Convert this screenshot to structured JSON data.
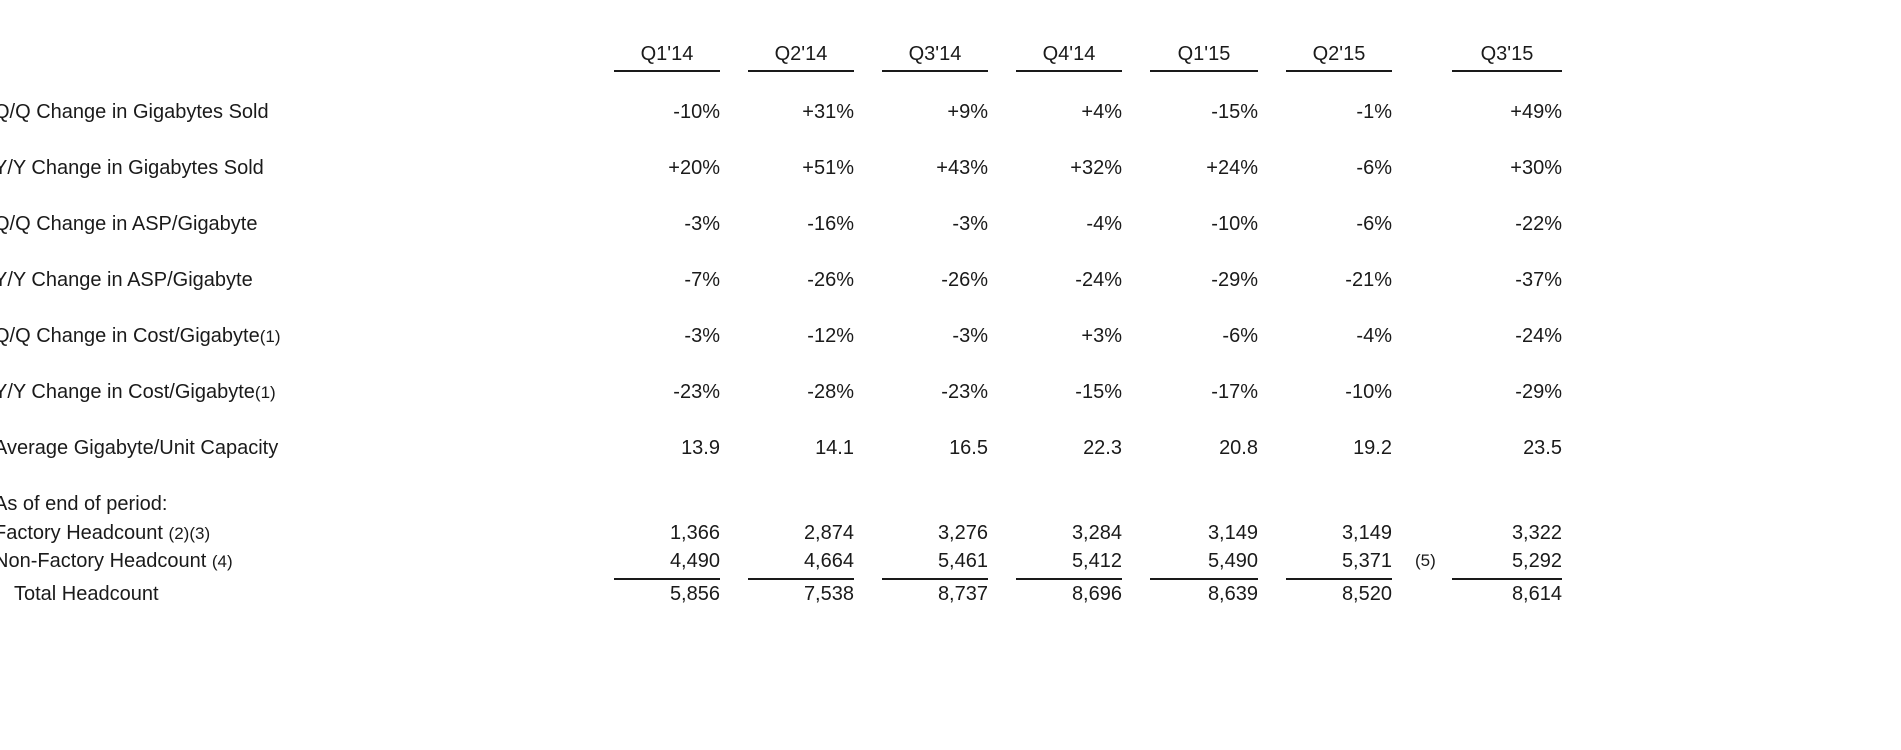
{
  "columns": [
    "Q1'14",
    "Q2'14",
    "Q3'14",
    "Q4'14",
    "Q1'15",
    "Q2'15",
    "Q3'15"
  ],
  "rows": [
    {
      "label": "Q/Q Change in Gigabytes Sold",
      "note": "",
      "values": [
        "-10%",
        "+31%",
        "+9%",
        "+4%",
        "-15%",
        "-1%",
        "+49%"
      ]
    },
    {
      "label": "Y/Y Change in Gigabytes Sold",
      "note": "",
      "values": [
        "+20%",
        "+51%",
        "+43%",
        "+32%",
        "+24%",
        "-6%",
        "+30%"
      ]
    },
    {
      "label": "Q/Q Change in ASP/Gigabyte",
      "note": "",
      "values": [
        "-3%",
        "-16%",
        "-3%",
        "-4%",
        "-10%",
        "-6%",
        "-22%"
      ]
    },
    {
      "label": "Y/Y Change in ASP/Gigabyte",
      "note": "",
      "values": [
        "-7%",
        "-26%",
        "-26%",
        "-24%",
        "-29%",
        "-21%",
        "-37%"
      ]
    },
    {
      "label": "Q/Q Change in Cost/Gigabyte",
      "note": "(1)",
      "values": [
        "-3%",
        "-12%",
        "-3%",
        "+3%",
        "-6%",
        "-4%",
        "-24%"
      ]
    },
    {
      "label": "Y/Y Change in Cost/Gigabyte",
      "note": "(1)",
      "values": [
        "-23%",
        "-28%",
        "-23%",
        "-15%",
        "-17%",
        "-10%",
        "-29%"
      ]
    },
    {
      "label": "Average Gigabyte/Unit Capacity",
      "note": "",
      "values": [
        "13.9",
        "14.1",
        "16.5",
        "22.3",
        "20.8",
        "19.2",
        "23.5"
      ]
    }
  ],
  "period_section": {
    "heading": "As of end of period:",
    "rows": [
      {
        "label": "Factory Headcount",
        "note": "(2)(3)",
        "values": [
          "1,366",
          "2,874",
          "3,276",
          "3,284",
          "3,149",
          "3,149",
          "3,322"
        ]
      },
      {
        "label": "Non-Factory Headcount",
        "note": "(4)",
        "values": [
          "4,490",
          "4,664",
          "5,461",
          "5,412",
          "5,490",
          "5,371",
          "5,292"
        ]
      }
    ],
    "between_note": "(5)",
    "total": {
      "label": "Total Headcount",
      "values": [
        "5,856",
        "7,538",
        "8,737",
        "8,696",
        "8,639",
        "8,520",
        "8,614"
      ]
    }
  }
}
